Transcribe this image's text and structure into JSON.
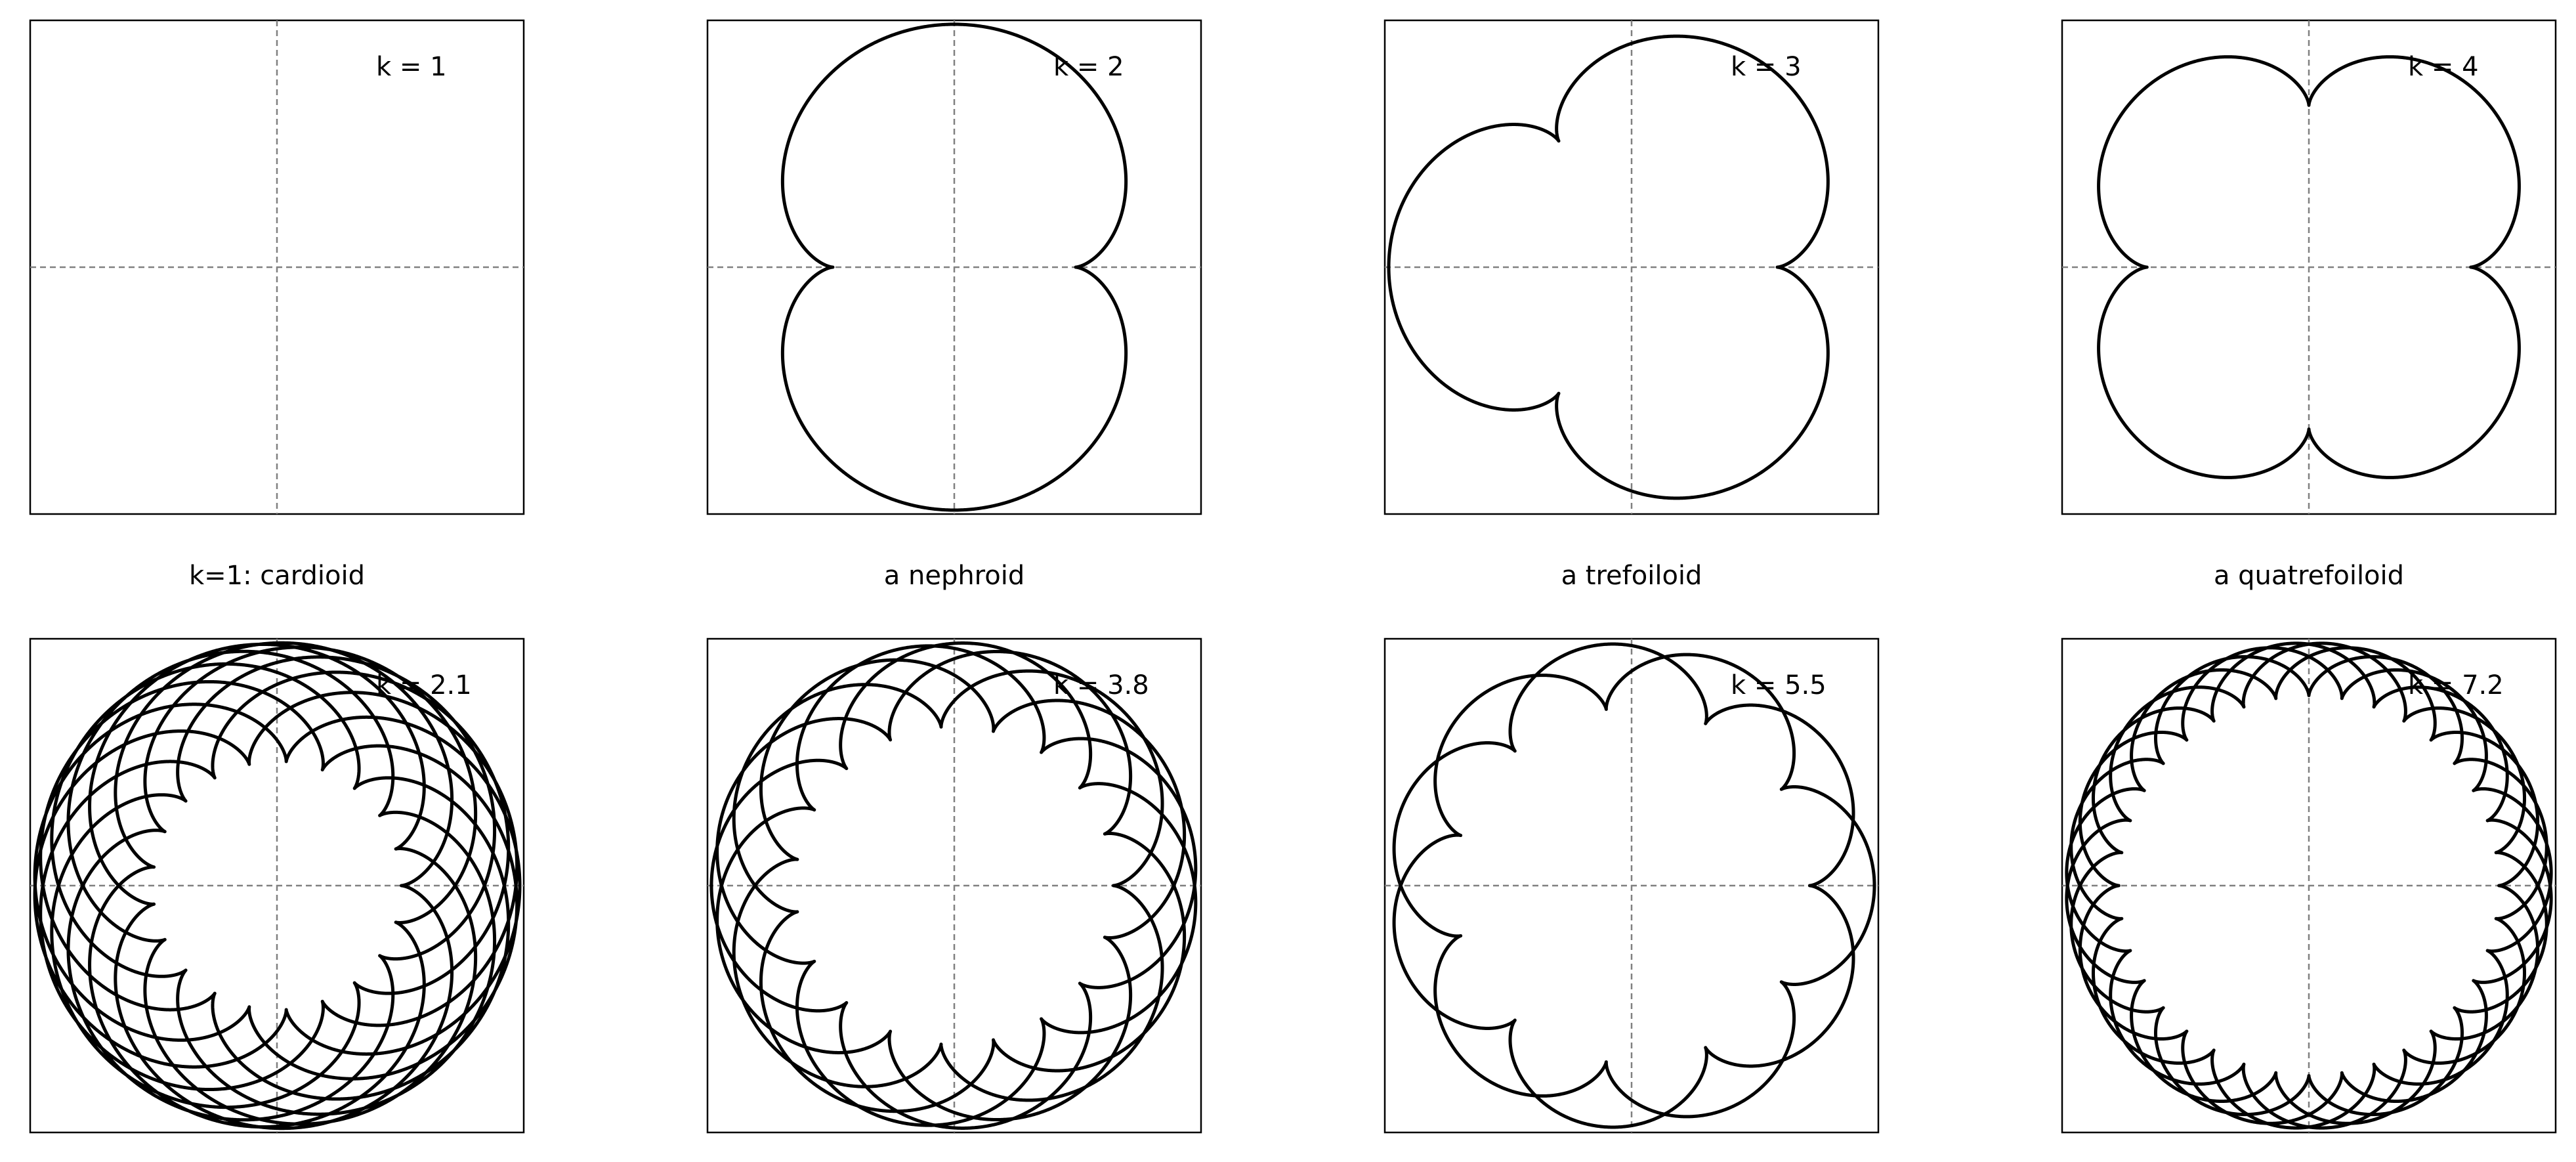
{
  "figure": {
    "panels": [
      {
        "row": 0,
        "col": 0,
        "k": 1,
        "label": "k = 1",
        "caption": "k=1: cardioid",
        "draw_curve": false
      },
      {
        "row": 0,
        "col": 1,
        "k": 2,
        "label": "k = 2",
        "caption": "a nephroid",
        "draw_curve": true
      },
      {
        "row": 0,
        "col": 2,
        "k": 3,
        "label": "k = 3",
        "caption": "a trefoiloid",
        "draw_curve": true
      },
      {
        "row": 0,
        "col": 3,
        "k": 4,
        "label": "k = 4",
        "caption": "a quatrefoiloid",
        "draw_curve": true
      },
      {
        "row": 1,
        "col": 0,
        "k": 2.1,
        "label": "k = 2.1",
        "caption": "",
        "draw_curve": true
      },
      {
        "row": 1,
        "col": 1,
        "k": 3.8,
        "label": "k = 3.8",
        "caption": "",
        "draw_curve": true
      },
      {
        "row": 1,
        "col": 2,
        "k": 5.5,
        "label": "k = 5.5",
        "caption": "",
        "draw_curve": true
      },
      {
        "row": 1,
        "col": 3,
        "k": 7.2,
        "label": "k = 7.2",
        "caption": "",
        "draw_curve": true
      }
    ],
    "colors": {
      "curve": "#000000",
      "axes": "#808080",
      "frame": "#000000",
      "background": "#ffffff"
    }
  }
}
